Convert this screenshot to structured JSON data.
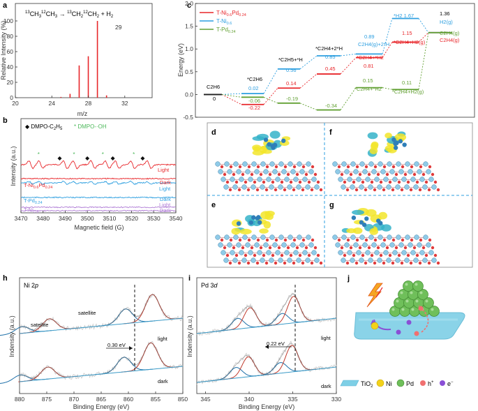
{
  "panel_labels": {
    "a": "a",
    "b": "b",
    "c": "c",
    "d": "d",
    "e": "e",
    "f": "f",
    "g": "g",
    "h": "h",
    "i": "i",
    "j": "j"
  },
  "colors": {
    "red": "#e8262a",
    "blue": "#2d9fe0",
    "green": "#62a033",
    "purple": "#b07dd6",
    "navy": "#1f5fa8",
    "ti": "#7ecfe6",
    "ni_atom": "#f3d21b",
    "pd_atom": "#6fbf5a",
    "hplus": "#f07070",
    "eminus": "#8a4fd6",
    "gray_data": "#c8c8c8",
    "dark_fit": "#c0392b",
    "blue_fit": "#1d6fa8",
    "envelope": "#555555"
  },
  "chart_data": [
    {
      "id": "a",
      "type": "bar",
      "title": "13CH3 12CH3 → 13CH2 12CH2 + H2",
      "title_parts": {
        "p1": "13",
        "p2": "CH",
        "p3": "3",
        "p4": "12",
        "p5": "CH",
        "p6": "3",
        "arrow": " → ",
        "p7": "13",
        "p8": "CH",
        "p9": "2",
        "p10": "12",
        "p11": "CH",
        "p12": "2",
        "p13": " + H",
        "p14": "2"
      },
      "xlabel": "m/z",
      "ylabel": "Relative Intensity (%)",
      "xlim": [
        20,
        35
      ],
      "ylim": [
        0,
        100
      ],
      "xticks": [
        "20",
        "24",
        "28",
        "32"
      ],
      "yticks": [
        "0",
        "20",
        "40",
        "60",
        "80",
        "100"
      ],
      "peak_label": "29",
      "peaks": [
        {
          "x": 25,
          "y": 1
        },
        {
          "x": 26,
          "y": 5
        },
        {
          "x": 27,
          "y": 42
        },
        {
          "x": 28,
          "y": 54
        },
        {
          "x": 29,
          "y": 100
        },
        {
          "x": 30,
          "y": 3
        }
      ]
    },
    {
      "id": "b",
      "type": "line",
      "xlabel": "Magnetic field (G)",
      "ylabel": "Intensity (a.u.)",
      "xlim": [
        3470,
        3540
      ],
      "xticks": [
        "3470",
        "3480",
        "3490",
        "3500",
        "3510",
        "3520",
        "3530",
        "3540"
      ],
      "legend": {
        "l1": "◆ DMPO-C",
        "l1s": "2",
        "l1b": "H",
        "l1c": "5",
        "l2": "* DMPO-·OH"
      },
      "series": [
        {
          "name": "T-Ni0.6Pd0.24",
          "label_main": "T-Ni",
          "sub1": "0.6",
          "mid": "Pd",
          "sub2": "0.24",
          "light": "Light",
          "dark": "Dark",
          "color": "#e8262a"
        },
        {
          "name": "T-Pd0.24",
          "label_main": "T-Pd",
          "sub1": "0.24",
          "light": "Light",
          "dark": "Dark",
          "color": "#2d9fe0"
        },
        {
          "name": "T-Ni0.6",
          "label_main": "T-Ni",
          "sub1": "0.6",
          "light": "Light",
          "dark": "Dark",
          "color": "#b07dd6"
        }
      ]
    },
    {
      "id": "c",
      "type": "line",
      "ylabel": "Energy (eV)",
      "ylim": [
        -0.5,
        2.0
      ],
      "yticks": [
        "-0.5",
        "0.0",
        "0.5",
        "1.0",
        "1.5",
        "2.0"
      ],
      "legend": [
        {
          "main": "T-Ni",
          "s1": "0.6",
          "mid": "Pd",
          "s2": "0.24",
          "color": "#e8262a"
        },
        {
          "main": "T-Ni",
          "s1": "0.6",
          "color": "#2d9fe0"
        },
        {
          "main": "T-Pd",
          "s1": "0.24",
          "color": "#62a033"
        }
      ],
      "states": [
        "C2H6",
        "*C2H6",
        "*C2H5+*H",
        "*C2H4+2*H",
        "C2H4(g)+2*H",
        "*H2",
        "H2(g)"
      ],
      "series": [
        {
          "name": "T-Ni0.6Pd0.24",
          "color": "#e8262a",
          "values": [
            0,
            -0.22,
            0.14,
            0.45,
            0.81,
            1.15,
            1.36
          ]
        },
        {
          "name": "T-Ni0.6",
          "color": "#2d9fe0",
          "values": [
            0,
            0.02,
            0.56,
            0.85,
            0.89,
            1.67,
            1.36
          ]
        },
        {
          "name": "T-Pd0.24",
          "color": "#62a033",
          "values": [
            0,
            -0.06,
            -0.19,
            -0.34,
            0.15,
            0.11,
            1.36
          ]
        }
      ],
      "value_labels": {
        "c2h6": "C2H6",
        "zero": "0",
        "v1": "*C2H6",
        "v2": "0.02",
        "v3": "-0.06",
        "v4": "-0.22",
        "v5": "*C2H5+*H",
        "v6": "0.56",
        "v7": "0.14",
        "v8": "-0.19",
        "v9": "*C2H4+2*H",
        "v10": "0.85",
        "v11": "0.45",
        "v12": "-0.34",
        "v13": "0.89",
        "v14": "C2H4(g)+2*H",
        "v15": "*C2H4+*H2",
        "v16": "0.81",
        "v17": "0.15",
        "v18": "*C2H4+*H2",
        "v19": "*H2  1.67",
        "v20": "1.15",
        "v21": "*C2H4+H2(g)",
        "v22": "0.11",
        "v23": "*C2H4+H2(g)",
        "v24": "1.36",
        "v25": "H2(g)",
        "v26": "C2H4(g)",
        "v27": "C2H4(g)"
      }
    },
    {
      "id": "h",
      "type": "line",
      "title_main": "Ni 2",
      "title_ital": "p",
      "xlabel": "Binding Energy (eV)",
      "ylabel": "Indensity (a.u.)",
      "xlim": [
        880,
        850
      ],
      "xticks": [
        "880",
        "875",
        "870",
        "865",
        "860",
        "855",
        "850"
      ],
      "annotations": {
        "sat1": "satellite",
        "sat2": "satellite",
        "shift": "0.30 eV",
        "light": "light",
        "dark": "dark"
      },
      "peaks_light": [
        {
          "x": 879.5,
          "h": 0.25
        },
        {
          "x": 874.5,
          "h": 0.45
        },
        {
          "x": 860.5,
          "h": 0.55
        },
        {
          "x": 855.6,
          "h": 1.0
        }
      ],
      "peaks_dark": [
        {
          "x": 879.8,
          "h": 0.25
        },
        {
          "x": 874.8,
          "h": 0.45
        },
        {
          "x": 860.8,
          "h": 0.55
        },
        {
          "x": 855.9,
          "h": 1.0
        }
      ]
    },
    {
      "id": "i",
      "type": "line",
      "title_main": "Pd 3",
      "title_ital": "d",
      "xlabel": "Binding Energy (eV)",
      "ylabel": "Indensity (a.u.)",
      "xlim": [
        346,
        330
      ],
      "xticks": [
        "345",
        "340",
        "335",
        "330"
      ],
      "annotations": {
        "shift": "0.22 eV",
        "light": "light",
        "dark": "dark"
      },
      "peaks_light": [
        {
          "x": 341.3,
          "h": 0.4
        },
        {
          "x": 339.9,
          "h": 0.75
        },
        {
          "x": 336.2,
          "h": 0.4
        },
        {
          "x": 334.9,
          "h": 1.0
        }
      ],
      "peaks_dark": [
        {
          "x": 341.5,
          "h": 0.4
        },
        {
          "x": 340.1,
          "h": 0.75
        },
        {
          "x": 336.4,
          "h": 0.4
        },
        {
          "x": 335.1,
          "h": 1.0
        }
      ]
    }
  ],
  "panel_j_legend": {
    "tio2": "TiO",
    "tio2_sub": "2",
    "ni": "Ni",
    "pd": "Pd",
    "hplus": "h",
    "hplus_sup": "+",
    "eminus": "e",
    "eminus_sup": "−"
  }
}
